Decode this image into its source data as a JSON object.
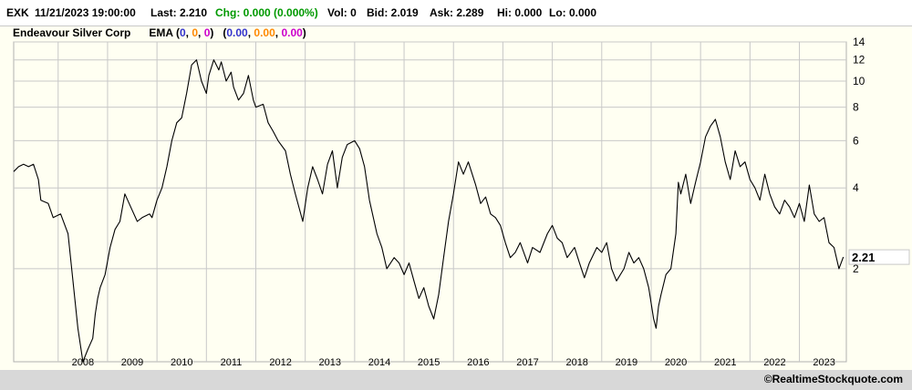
{
  "quote": {
    "symbol": "EXK",
    "datetime": "11/21/2023 19:00:00",
    "last": "Last: 2.210",
    "chg": "Chg: 0.000 (0.000%)",
    "vol": "Vol: 0",
    "bid": "Bid: 2.019",
    "ask": "Ask: 2.289",
    "hi": "Hi: 0.000",
    "lo": "Lo: 0.000"
  },
  "legend": {
    "company": "Endeavour Silver Corp",
    "ema_label": "EMA",
    "ema_params": [
      "0",
      "0",
      "0"
    ],
    "ema_values": [
      "0.00",
      "0.00",
      "0.00"
    ]
  },
  "colors": {
    "ema1": "#3333cc",
    "ema2": "#ff8800",
    "ema3": "#cc00cc",
    "chg": "#009900",
    "price_line": "#000000",
    "grid": "#c8c8c8",
    "background": "#fffff2"
  },
  "footer": {
    "copyright": "©RealtimeStockquote.com"
  },
  "chart_data": {
    "type": "line",
    "scale": "log",
    "grid": true,
    "last_value_label": "2.21",
    "x_ticks": [
      "2008",
      "2009",
      "2010",
      "2011",
      "2012",
      "2013",
      "2014",
      "2015",
      "2016",
      "2017",
      "2018",
      "2019",
      "2020",
      "2021",
      "2022",
      "2023"
    ],
    "y_ticks": [
      "14",
      "12",
      "10",
      "8",
      "6",
      "4",
      "2"
    ],
    "xlim": [
      2007.1,
      2023.95
    ],
    "ylim": [
      0.9,
      14
    ],
    "series": [
      {
        "x": [
          2007.1,
          2007.2,
          2007.3,
          2007.4,
          2007.5,
          2007.6,
          2007.65,
          2007.8,
          2007.9,
          2008.05,
          2008.2,
          2008.3,
          2008.4,
          2008.5,
          2008.6,
          2008.7,
          2008.75,
          2008.8,
          2008.85,
          2008.95,
          2009.05,
          2009.15,
          2009.25,
          2009.35,
          2009.5,
          2009.6,
          2009.7,
          2009.85,
          2009.9,
          2010.0,
          2010.1,
          2010.2,
          2010.3,
          2010.4,
          2010.5,
          2010.6,
          2010.7,
          2010.8,
          2010.9,
          2011.0,
          2011.05,
          2011.15,
          2011.2,
          2011.25,
          2011.3,
          2011.4,
          2011.5,
          2011.55,
          2011.65,
          2011.75,
          2011.85,
          2011.95,
          2012.0,
          2012.15,
          2012.25,
          2012.35,
          2012.45,
          2012.6,
          2012.7,
          2012.8,
          2012.95,
          2013.05,
          2013.15,
          2013.25,
          2013.35,
          2013.45,
          2013.55,
          2013.65,
          2013.75,
          2013.85,
          2014.0,
          2014.1,
          2014.2,
          2014.3,
          2014.45,
          2014.55,
          2014.65,
          2014.8,
          2014.9,
          2015.0,
          2015.1,
          2015.2,
          2015.3,
          2015.4,
          2015.5,
          2015.6,
          2015.7,
          2015.8,
          2015.9,
          2016.0,
          2016.1,
          2016.2,
          2016.3,
          2016.45,
          2016.55,
          2016.65,
          2016.75,
          2016.85,
          2016.95,
          2017.05,
          2017.15,
          2017.25,
          2017.35,
          2017.5,
          2017.6,
          2017.75,
          2017.9,
          2018.0,
          2018.1,
          2018.2,
          2018.3,
          2018.45,
          2018.55,
          2018.65,
          2018.75,
          2018.9,
          2019.0,
          2019.1,
          2019.2,
          2019.3,
          2019.45,
          2019.55,
          2019.65,
          2019.75,
          2019.85,
          2019.95,
          2020.05,
          2020.1,
          2020.15,
          2020.2,
          2020.3,
          2020.4,
          2020.5,
          2020.55,
          2020.6,
          2020.7,
          2020.8,
          2020.9,
          2021.0,
          2021.1,
          2021.2,
          2021.3,
          2021.4,
          2021.5,
          2021.6,
          2021.7,
          2021.8,
          2021.9,
          2022.0,
          2022.1,
          2022.2,
          2022.3,
          2022.4,
          2022.5,
          2022.6,
          2022.7,
          2022.8,
          2022.9,
          2023.0,
          2023.1,
          2023.2,
          2023.3,
          2023.4,
          2023.5,
          2023.6,
          2023.7,
          2023.8,
          2023.89
        ],
        "y": [
          4.6,
          4.8,
          4.9,
          4.8,
          4.9,
          4.3,
          3.6,
          3.5,
          3.1,
          3.2,
          2.7,
          1.8,
          1.2,
          0.9,
          1.0,
          1.1,
          1.35,
          1.55,
          1.7,
          1.9,
          2.4,
          2.8,
          3.0,
          3.8,
          3.3,
          3.0,
          3.1,
          3.2,
          3.1,
          3.6,
          4.0,
          4.8,
          6.0,
          7.0,
          7.3,
          9.0,
          11.5,
          12.0,
          10.0,
          9.0,
          10.5,
          12.0,
          11.5,
          11.0,
          11.8,
          10.0,
          10.8,
          9.5,
          8.5,
          9.0,
          10.5,
          8.5,
          8.0,
          8.2,
          7.0,
          6.5,
          6.0,
          5.5,
          4.5,
          3.8,
          3.0,
          4.0,
          4.8,
          4.3,
          3.8,
          4.9,
          5.5,
          4.0,
          5.2,
          5.8,
          6.0,
          5.6,
          4.8,
          3.6,
          2.7,
          2.4,
          2.0,
          2.2,
          2.1,
          1.9,
          2.1,
          1.8,
          1.55,
          1.7,
          1.45,
          1.3,
          1.6,
          2.2,
          3.0,
          3.8,
          5.0,
          4.5,
          5.0,
          4.1,
          3.5,
          3.7,
          3.2,
          3.1,
          2.9,
          2.5,
          2.2,
          2.3,
          2.5,
          2.1,
          2.4,
          2.3,
          2.7,
          2.9,
          2.6,
          2.5,
          2.2,
          2.4,
          2.1,
          1.85,
          2.1,
          2.4,
          2.3,
          2.5,
          2.0,
          1.8,
          2.0,
          2.3,
          2.1,
          2.2,
          2.0,
          1.7,
          1.3,
          1.2,
          1.45,
          1.6,
          1.9,
          2.0,
          2.7,
          4.2,
          3.8,
          4.5,
          3.5,
          4.2,
          5.0,
          6.2,
          6.8,
          7.2,
          6.2,
          5.0,
          4.3,
          5.5,
          4.8,
          5.0,
          4.3,
          4.0,
          3.6,
          4.5,
          3.8,
          3.4,
          3.2,
          3.6,
          3.4,
          3.1,
          3.5,
          3.0,
          4.1,
          3.2,
          3.0,
          3.1,
          2.5,
          2.4,
          2.0,
          2.21
        ]
      }
    ]
  }
}
